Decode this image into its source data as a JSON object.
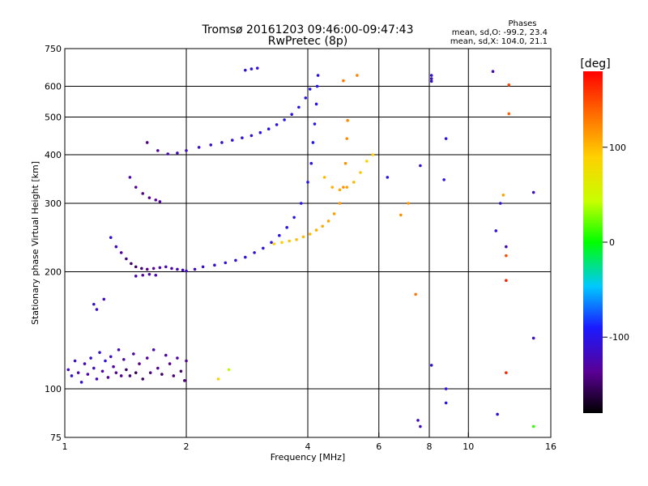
{
  "chart_data": {
    "type": "scatter",
    "title": "Tromsø 20161203 09:46:00-09:47:43",
    "subtitle": "RwPretec (8p)",
    "xlabel": "Frequency [MHz]",
    "ylabel": "Stationary phase Virtual Height [km]",
    "x_scale": "log",
    "y_scale": "log",
    "xlim": [
      1,
      16
    ],
    "ylim": [
      75,
      750
    ],
    "x_ticks": [
      1,
      2,
      4,
      6,
      8,
      10,
      16
    ],
    "x_tick_labels": [
      "1",
      "2",
      "4",
      "6",
      "8",
      "10",
      "16"
    ],
    "y_ticks": [
      75,
      100,
      200,
      300,
      400,
      500,
      600,
      750
    ],
    "y_tick_labels": [
      "75",
      "100",
      "200",
      "300",
      "400",
      "500",
      "600",
      "750"
    ],
    "x_gridlines": [
      2,
      4,
      6,
      8,
      10
    ],
    "y_gridlines": [
      100,
      200,
      300,
      400,
      500,
      600
    ],
    "grid": true,
    "stats": {
      "heading": "Phases",
      "line_o": "mean, sd,O: -99.2, 23.4",
      "line_x": "mean, sd,X: 104.0, 21.1"
    },
    "colorbar": {
      "label": "[deg]",
      "range": [
        -180,
        180
      ],
      "ticks": [
        100,
        0,
        -100
      ],
      "tick_labels": [
        "100",
        "0",
        "-100"
      ]
    },
    "series": [
      {
        "points": [
          [
            1.02,
            112,
            -120
          ],
          [
            1.04,
            108,
            -110
          ],
          [
            1.06,
            118,
            -115
          ],
          [
            1.08,
            110,
            -125
          ],
          [
            1.1,
            104,
            -105
          ],
          [
            1.12,
            116,
            -120
          ],
          [
            1.14,
            109,
            -130
          ],
          [
            1.16,
            120,
            -110
          ],
          [
            1.18,
            113,
            -118
          ],
          [
            1.2,
            106,
            -122
          ],
          [
            1.22,
            124,
            -112
          ],
          [
            1.24,
            111,
            -128
          ],
          [
            1.26,
            118,
            -108
          ],
          [
            1.28,
            107,
            -135
          ],
          [
            1.3,
            121,
            -115
          ],
          [
            1.32,
            114,
            -130
          ],
          [
            1.34,
            110,
            -140
          ],
          [
            1.36,
            126,
            -118
          ],
          [
            1.38,
            108,
            -142
          ],
          [
            1.4,
            119,
            -125
          ],
          [
            1.42,
            112,
            -150
          ],
          [
            1.45,
            108,
            -148
          ],
          [
            1.48,
            123,
            -130
          ],
          [
            1.5,
            110,
            -155
          ],
          [
            1.53,
            116,
            -140
          ],
          [
            1.56,
            106,
            -150
          ],
          [
            1.6,
            120,
            -135
          ],
          [
            1.63,
            110,
            -145
          ],
          [
            1.66,
            126,
            -120
          ],
          [
            1.7,
            113,
            -138
          ],
          [
            1.74,
            109,
            -150
          ],
          [
            1.78,
            122,
            -128
          ],
          [
            1.82,
            116,
            -140
          ],
          [
            1.86,
            108,
            -145
          ],
          [
            1.9,
            120,
            -130
          ],
          [
            1.94,
            111,
            -150
          ],
          [
            1.98,
            105,
            -142
          ],
          [
            2.0,
            118,
            -138
          ]
        ]
      },
      {
        "points": [
          [
            1.18,
            165,
            -110
          ],
          [
            1.2,
            160,
            -115
          ],
          [
            1.25,
            170,
            -120
          ]
        ]
      },
      {
        "points": [
          [
            1.3,
            245,
            -110
          ],
          [
            1.34,
            232,
            -120
          ],
          [
            1.38,
            224,
            -135
          ],
          [
            1.42,
            216,
            -145
          ],
          [
            1.46,
            210,
            -150
          ],
          [
            1.5,
            206,
            -150
          ],
          [
            1.55,
            204,
            -145
          ],
          [
            1.6,
            203,
            -140
          ],
          [
            1.66,
            204,
            -135
          ],
          [
            1.72,
            205,
            -130
          ],
          [
            1.78,
            206,
            -125
          ],
          [
            1.84,
            204,
            -125
          ],
          [
            1.9,
            203,
            -122
          ],
          [
            1.96,
            202,
            -120
          ],
          [
            2.0,
            201,
            -118
          ],
          [
            2.1,
            203,
            -115
          ],
          [
            2.2,
            206,
            -112
          ],
          [
            2.35,
            208,
            -110
          ],
          [
            2.5,
            211,
            -108
          ],
          [
            2.65,
            214,
            -106
          ],
          [
            2.8,
            218,
            -105
          ],
          [
            2.95,
            224,
            -104
          ],
          [
            3.1,
            230,
            -103
          ],
          [
            3.25,
            238,
            -102
          ],
          [
            3.4,
            248,
            -101
          ],
          [
            3.55,
            260,
            -100
          ],
          [
            3.7,
            276,
            -100
          ],
          [
            3.85,
            300,
            -100
          ],
          [
            4.0,
            340,
            -100
          ],
          [
            4.08,
            380,
            -100
          ],
          [
            4.12,
            430,
            -100
          ],
          [
            4.16,
            480,
            -100
          ],
          [
            4.2,
            540,
            -100
          ],
          [
            4.22,
            600,
            -100
          ],
          [
            4.24,
            640,
            -100
          ]
        ]
      },
      {
        "points": [
          [
            1.5,
            195,
            -125
          ],
          [
            1.56,
            196,
            -130
          ],
          [
            1.62,
            197,
            -128
          ],
          [
            1.68,
            196,
            -125
          ]
        ]
      },
      {
        "points": [
          [
            1.45,
            350,
            -130
          ],
          [
            1.5,
            330,
            -135
          ],
          [
            1.56,
            318,
            -140
          ],
          [
            1.62,
            310,
            -140
          ],
          [
            1.68,
            306,
            -135
          ],
          [
            1.72,
            303,
            -130
          ]
        ]
      },
      {
        "points": [
          [
            1.6,
            430,
            -140
          ],
          [
            1.7,
            410,
            -130
          ],
          [
            1.8,
            402,
            -125
          ],
          [
            1.9,
            404,
            -120
          ],
          [
            2.0,
            410,
            -118
          ],
          [
            2.15,
            418,
            -115
          ],
          [
            2.3,
            424,
            -112
          ],
          [
            2.45,
            430,
            -110
          ],
          [
            2.6,
            436,
            -108
          ],
          [
            2.75,
            442,
            -106
          ],
          [
            2.9,
            448,
            -104
          ],
          [
            3.05,
            456,
            -103
          ],
          [
            3.2,
            466,
            -102
          ],
          [
            3.35,
            478,
            -101
          ],
          [
            3.5,
            492,
            -100
          ],
          [
            3.65,
            508,
            -100
          ],
          [
            3.8,
            530,
            -100
          ],
          [
            3.95,
            560,
            -100
          ],
          [
            4.05,
            590,
            -100
          ]
        ]
      },
      {
        "points": [
          [
            3.3,
            236,
            90
          ],
          [
            3.45,
            238,
            92
          ],
          [
            3.6,
            240,
            95
          ],
          [
            3.75,
            242,
            98
          ],
          [
            3.9,
            246,
            100
          ],
          [
            4.05,
            250,
            102
          ],
          [
            4.2,
            256,
            105
          ],
          [
            4.35,
            262,
            108
          ],
          [
            4.5,
            270,
            110
          ],
          [
            4.65,
            282,
            112
          ],
          [
            4.8,
            300,
            115
          ],
          [
            4.9,
            330,
            118
          ],
          [
            4.96,
            380,
            118
          ],
          [
            5.0,
            440,
            120
          ],
          [
            5.02,
            490,
            122
          ]
        ]
      },
      {
        "points": [
          [
            4.4,
            350,
            100
          ],
          [
            4.6,
            330,
            105
          ],
          [
            4.8,
            325,
            108
          ],
          [
            5.0,
            330,
            110
          ],
          [
            5.2,
            340,
            100
          ],
          [
            5.4,
            360,
            95
          ],
          [
            5.6,
            385,
            90
          ],
          [
            5.8,
            400,
            88
          ]
        ]
      },
      {
        "points": [
          [
            2.8,
            660,
            -110
          ],
          [
            2.9,
            665,
            -105
          ],
          [
            3.0,
            668,
            -110
          ],
          [
            4.9,
            620,
            130
          ],
          [
            5.3,
            640,
            125
          ],
          [
            8.1,
            640,
            -110
          ],
          [
            8.1,
            628,
            -115
          ],
          [
            8.1,
            618,
            -110
          ],
          [
            11.5,
            655,
            -120
          ],
          [
            12.6,
            605,
            150
          ],
          [
            12.6,
            510,
            140
          ],
          [
            8.8,
            440,
            -100
          ],
          [
            7.6,
            375,
            -110
          ],
          [
            8.7,
            345,
            -105
          ],
          [
            6.3,
            350,
            -100
          ],
          [
            12.2,
            315,
            110
          ],
          [
            14.5,
            320,
            -115
          ],
          [
            12.0,
            300,
            -110
          ],
          [
            6.8,
            280,
            120
          ],
          [
            7.1,
            300,
            115
          ],
          [
            11.7,
            255,
            -105
          ],
          [
            12.4,
            232,
            -120
          ],
          [
            12.4,
            220,
            150
          ],
          [
            12.4,
            190,
            165
          ],
          [
            7.4,
            175,
            130
          ],
          [
            14.5,
            135,
            -115
          ],
          [
            12.4,
            110,
            165
          ],
          [
            8.1,
            115,
            -110
          ],
          [
            8.8,
            100,
            -105
          ],
          [
            8.8,
            92,
            -100
          ],
          [
            7.6,
            80,
            -120
          ],
          [
            7.5,
            83,
            -120
          ],
          [
            11.8,
            86,
            -110
          ],
          [
            14.5,
            80,
            10
          ],
          [
            2.4,
            106,
            90
          ],
          [
            2.55,
            112,
            40
          ]
        ]
      }
    ]
  }
}
